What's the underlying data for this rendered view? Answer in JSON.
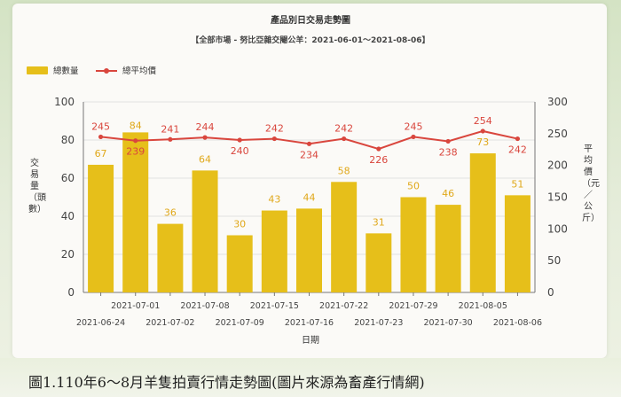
{
  "chart_data": {
    "type": "bar+line",
    "title": "產品別日交易走勢圖",
    "subtitle": "【全部市場 - 努比亞雜交閹公羊：2021-06-01～2021-08-06】",
    "xlabel": "日期",
    "ylabel_left": "交易量（頭數）",
    "ylabel_right": "平均價（元／公斤）",
    "ylim_left": [
      0,
      100
    ],
    "ylim_right": [
      0,
      300
    ],
    "yticks_left": [
      0,
      20,
      40,
      60,
      80,
      100
    ],
    "yticks_right": [
      0,
      50,
      100,
      150,
      200,
      250,
      300
    ],
    "grid": true,
    "legend_position": "top-left",
    "categories": [
      "2021-06-24",
      "2021-07-01",
      "2021-07-02",
      "2021-07-08",
      "2021-07-09",
      "2021-07-15",
      "2021-07-16",
      "2021-07-22",
      "2021-07-23",
      "2021-07-29",
      "2021-07-30",
      "2021-08-05",
      "2021-08-06"
    ],
    "series": [
      {
        "name": "總數量",
        "kind": "bar",
        "axis": "left",
        "color": "#e6bf1a",
        "values": [
          67,
          84,
          36,
          64,
          30,
          43,
          44,
          58,
          31,
          50,
          46,
          73,
          51
        ]
      },
      {
        "name": "總平均價",
        "kind": "line",
        "axis": "right",
        "color": "#d9463d",
        "values": [
          245,
          239,
          241,
          244,
          240,
          242,
          234,
          242,
          226,
          245,
          238,
          254,
          242
        ]
      }
    ]
  },
  "caption": "圖1.110年6～8月羊隻拍賣行情走勢圖(圖片來源為畜產行情網)"
}
